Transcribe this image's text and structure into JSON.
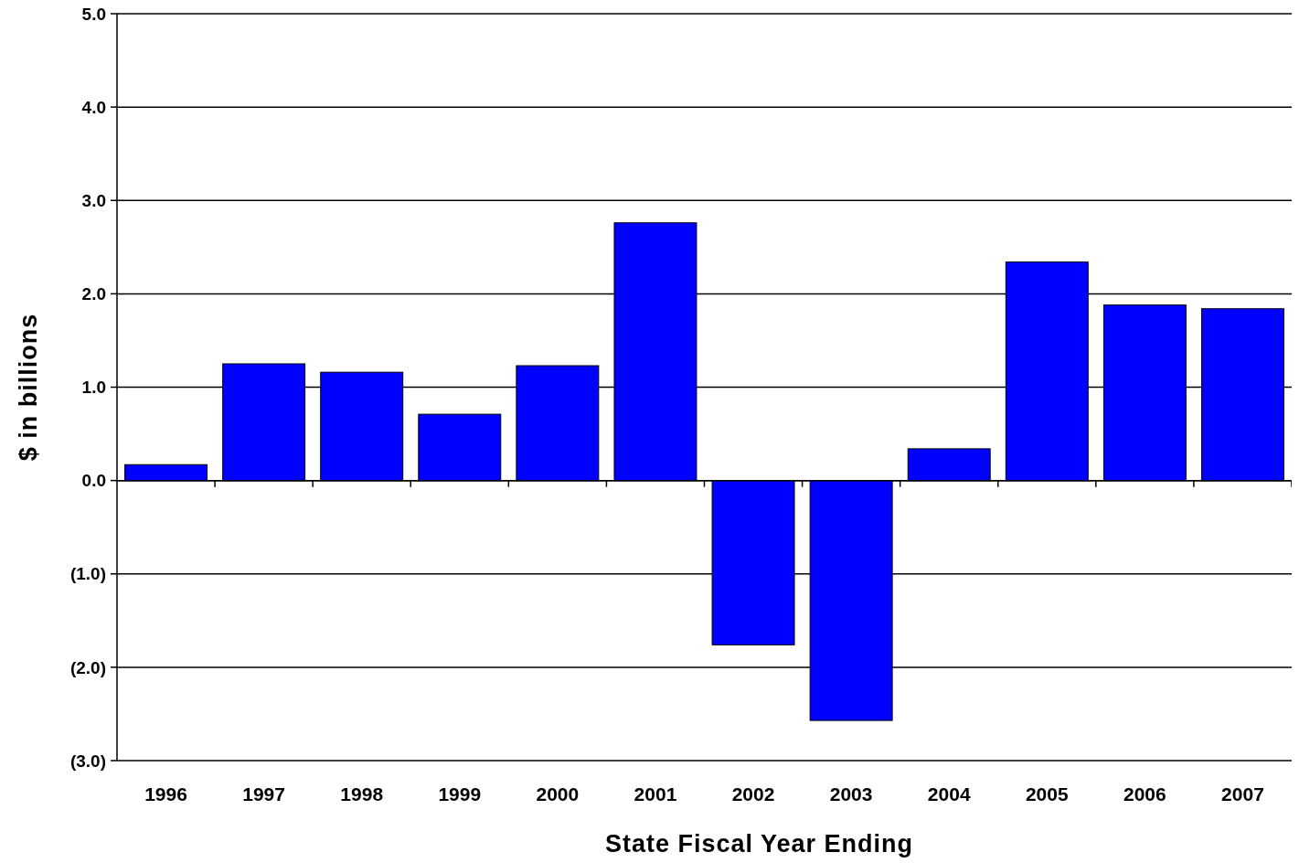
{
  "chart_data": {
    "type": "bar",
    "xlabel": "State Fiscal Year Ending",
    "ylabel": "$ in billions",
    "categories": [
      "1996",
      "1997",
      "1998",
      "1999",
      "2000",
      "2001",
      "2002",
      "2003",
      "2004",
      "2005",
      "2006",
      "2007"
    ],
    "values": [
      0.17,
      1.25,
      1.16,
      0.71,
      1.23,
      2.76,
      -1.76,
      -2.57,
      0.34,
      2.34,
      1.88,
      1.84
    ],
    "color": "#0000ff",
    "ylim": [
      -3,
      5
    ],
    "yticks": [
      {
        "value": -3,
        "label": "(3.0)"
      },
      {
        "value": -2,
        "label": "(2.0)"
      },
      {
        "value": -1,
        "label": "(1.0)"
      },
      {
        "value": 0,
        "label": "0.0"
      },
      {
        "value": 1,
        "label": "1.0"
      },
      {
        "value": 2,
        "label": "2.0"
      },
      {
        "value": 3,
        "label": "3.0"
      },
      {
        "value": 4,
        "label": "4.0"
      },
      {
        "value": 5,
        "label": "5.0"
      }
    ],
    "grid": "y"
  }
}
